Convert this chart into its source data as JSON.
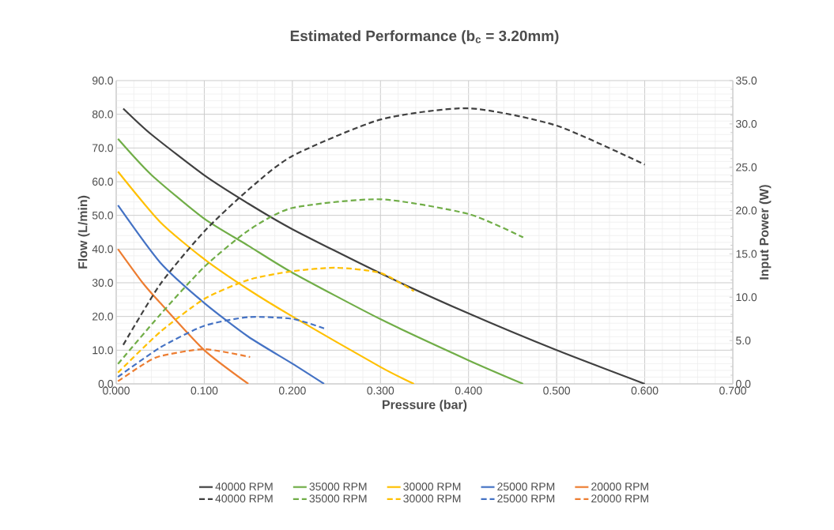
{
  "chart_data": {
    "type": "line",
    "title": "Estimated Performance (b$_{c}$ = 3.20mm)",
    "xlabel": "Pressure (bar)",
    "ylabel": "Flow (L/min)",
    "y2label": "Input Power (W)",
    "xlim": [
      0,
      0.7
    ],
    "xticks": [
      {
        "value": 0,
        "label": "0.000"
      },
      {
        "value": 0.1,
        "label": "0.100"
      },
      {
        "value": 0.2,
        "label": "0.200"
      },
      {
        "value": 0.3,
        "label": "0.300"
      },
      {
        "value": 0.4,
        "label": "0.400"
      },
      {
        "value": 0.5,
        "label": "0.500"
      },
      {
        "value": 0.6,
        "label": "0.600"
      },
      {
        "value": 0.7,
        "label": "0.700"
      }
    ],
    "ylim": [
      0,
      90
    ],
    "yticks": [
      {
        "value": 0,
        "label": "0.0"
      },
      {
        "value": 10,
        "label": "10.0"
      },
      {
        "value": 20,
        "label": "20.0"
      },
      {
        "value": 30,
        "label": "30.0"
      },
      {
        "value": 40,
        "label": "40.0"
      },
      {
        "value": 50,
        "label": "50.0"
      },
      {
        "value": 60,
        "label": "60.0"
      },
      {
        "value": 70,
        "label": "70.0"
      },
      {
        "value": 80,
        "label": "80.0"
      },
      {
        "value": 90,
        "label": "90.0"
      }
    ],
    "y2lim": [
      0,
      35
    ],
    "y2ticks": [
      {
        "value": 0,
        "label": "0.0"
      },
      {
        "value": 5,
        "label": "5.0"
      },
      {
        "value": 10,
        "label": "10.0"
      },
      {
        "value": 15,
        "label": "15.0"
      },
      {
        "value": 20,
        "label": "20.0"
      },
      {
        "value": 25,
        "label": "25.0"
      },
      {
        "value": 30,
        "label": "30.0"
      },
      {
        "value": 35,
        "label": "35.0"
      }
    ],
    "grid": true,
    "legend": "bottom",
    "marker": "none",
    "series": [
      {
        "name": "40000 RPM",
        "color": "#404040",
        "axis": "y",
        "line_style": "solid",
        "x": [
          0.008,
          0.04,
          0.1,
          0.15,
          0.2,
          0.3,
          0.4,
          0.5,
          0.6
        ],
        "values": [
          81.7,
          74,
          61.9,
          53.5,
          45.9,
          32.8,
          20.9,
          10,
          0
        ]
      },
      {
        "name": "35000 RPM",
        "color": "#70ad47",
        "axis": "y",
        "line_style": "solid",
        "x": [
          0.002,
          0.04,
          0.1,
          0.15,
          0.2,
          0.3,
          0.4,
          0.462
        ],
        "values": [
          72.7,
          62,
          49,
          41,
          33,
          19.2,
          7,
          0
        ]
      },
      {
        "name": "30000 RPM",
        "color": "#ffc000",
        "axis": "y",
        "line_style": "solid",
        "x": [
          0.002,
          0.05,
          0.1,
          0.15,
          0.2,
          0.3,
          0.338
        ],
        "values": [
          63,
          48,
          37,
          28,
          20,
          5,
          0
        ]
      },
      {
        "name": "25000 RPM",
        "color": "#4472c4",
        "axis": "y",
        "line_style": "solid",
        "x": [
          0.002,
          0.05,
          0.1,
          0.15,
          0.2,
          0.236
        ],
        "values": [
          53,
          36,
          24,
          14,
          6,
          0
        ]
      },
      {
        "name": "20000 RPM",
        "color": "#ed7d31",
        "axis": "y",
        "line_style": "solid",
        "x": [
          0.002,
          0.03,
          0.05,
          0.1,
          0.15
        ],
        "values": [
          40,
          30,
          24,
          10,
          0
        ]
      },
      {
        "name": "40000 RPM",
        "color": "#404040",
        "axis": "y2",
        "line_style": "dashed",
        "x": [
          0.008,
          0.05,
          0.1,
          0.15,
          0.2,
          0.3,
          0.4,
          0.5,
          0.6
        ],
        "values": [
          4.5,
          11.5,
          17.6,
          22.4,
          26.3,
          30.5,
          31.8,
          29.8,
          25.3
        ]
      },
      {
        "name": "35000 RPM",
        "color": "#70ad47",
        "axis": "y2",
        "line_style": "dashed",
        "x": [
          0.002,
          0.05,
          0.1,
          0.15,
          0.2,
          0.3,
          0.4,
          0.462
        ],
        "values": [
          2.3,
          8,
          13.5,
          17.7,
          20.3,
          21.3,
          19.6,
          16.9
        ]
      },
      {
        "name": "30000 RPM",
        "color": "#ffc000",
        "axis": "y2",
        "line_style": "dashed",
        "x": [
          0.002,
          0.05,
          0.1,
          0.15,
          0.2,
          0.25,
          0.3,
          0.338
        ],
        "values": [
          1.3,
          6,
          9.8,
          12,
          13,
          13.4,
          12.8,
          10.7
        ]
      },
      {
        "name": "25000 RPM",
        "color": "#4472c4",
        "axis": "y2",
        "line_style": "dashed",
        "x": [
          0.002,
          0.05,
          0.1,
          0.15,
          0.2,
          0.236
        ],
        "values": [
          0.8,
          4.2,
          6.7,
          7.7,
          7.5,
          6.4
        ]
      },
      {
        "name": "20000 RPM",
        "color": "#ed7d31",
        "axis": "y2",
        "line_style": "dashed",
        "x": [
          0.002,
          0.03,
          0.05,
          0.1,
          0.152
        ],
        "values": [
          0.3,
          2.2,
          3.2,
          4.0,
          3.1
        ]
      }
    ]
  }
}
